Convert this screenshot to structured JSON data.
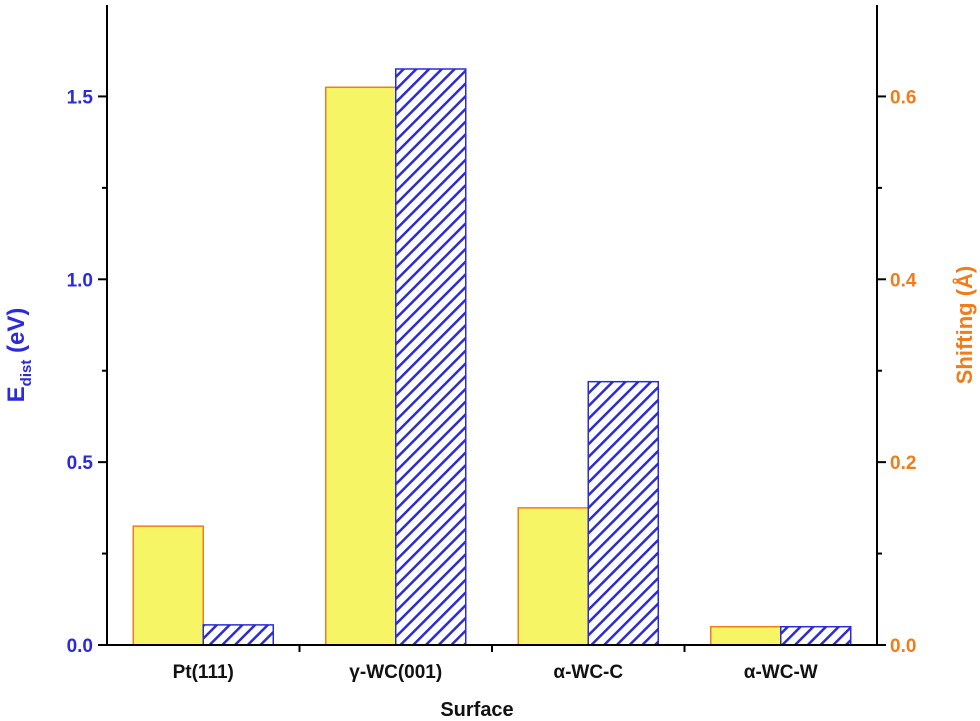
{
  "chart_data": {
    "type": "bar",
    "xlabel": "Surface",
    "categories": [
      "Pt(111)",
      "γ-WC(001)",
      "α-WC-C",
      "α-WC-W"
    ],
    "left_axis": {
      "label_main": "E",
      "label_sub": "dist",
      "label_unit": " (eV)",
      "ylim": [
        0.0,
        1.75
      ],
      "ticks": [
        0.0,
        0.5,
        1.0,
        1.5
      ],
      "tick_labels": [
        "0.0",
        "0.5",
        "1.0",
        "1.5"
      ],
      "color": "#2b2bd9"
    },
    "right_axis": {
      "label": "Shifting (Å)",
      "ylim": [
        0.0,
        0.7
      ],
      "ticks": [
        0.0,
        0.2,
        0.4,
        0.6
      ],
      "tick_labels": [
        "0.0",
        "0.2",
        "0.4",
        "0.6"
      ],
      "color": "#f07d1a"
    },
    "series": [
      {
        "axis": "right",
        "style": "solid",
        "fill": "#f5f565",
        "stroke": "#f07d1a",
        "values": [
          0.13,
          0.61,
          0.15,
          0.02
        ]
      },
      {
        "axis": "left",
        "style": "hatched",
        "fill": "#2b2bd9",
        "stroke": "#2b2bd9",
        "values": [
          0.055,
          1.575,
          0.72,
          0.05
        ]
      }
    ],
    "grid": false
  }
}
